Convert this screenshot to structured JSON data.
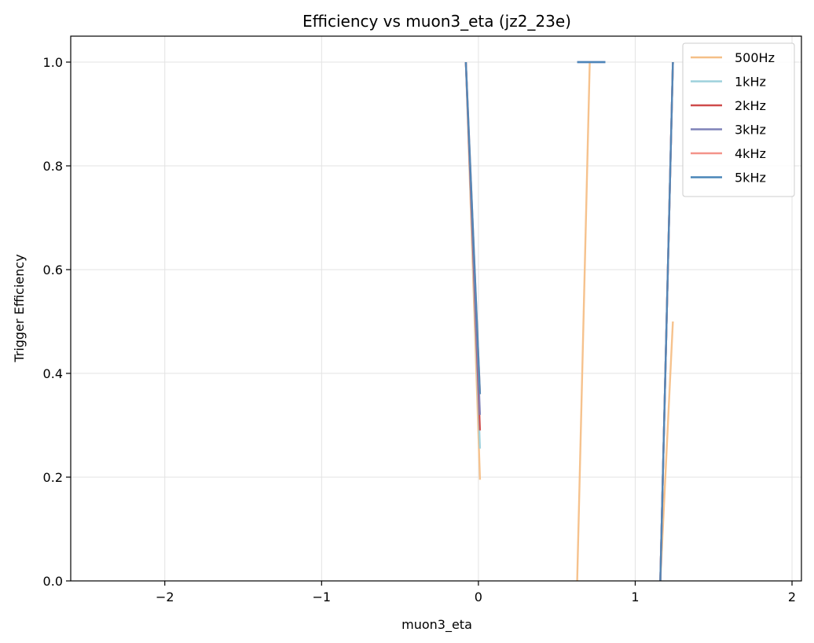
{
  "chart_data": {
    "type": "line",
    "title": "Efficiency vs muon3_eta (jz2_23e)",
    "xlabel": "muon3_eta",
    "ylabel": "Trigger Efficiency",
    "xlim": [
      -2.6,
      2.06
    ],
    "ylim": [
      0,
      1.05
    ],
    "xticks": [
      -2,
      -1,
      0,
      1,
      2
    ],
    "xtick_labels": [
      "−2",
      "−1",
      "0",
      "1",
      "2"
    ],
    "yticks": [
      0.0,
      0.2,
      0.4,
      0.6,
      0.8,
      1.0
    ],
    "ytick_labels": [
      "0.0",
      "0.2",
      "0.4",
      "0.6",
      "0.8",
      "1.0"
    ],
    "grid": true,
    "legend_position": "top-right",
    "series": [
      {
        "name": "500Hz",
        "color": "#f5bf87",
        "segments": [
          [
            [
              -0.08,
              1.0
            ],
            [
              0.01,
              0.195
            ]
          ],
          [
            [
              0.63,
              0.0
            ],
            [
              0.71,
              1.0
            ]
          ],
          [
            [
              1.16,
              0.0
            ],
            [
              1.24,
              0.5
            ]
          ]
        ]
      },
      {
        "name": "1kHz",
        "color": "#9dd1dc",
        "segments": [
          [
            [
              -0.08,
              1.0
            ],
            [
              0.01,
              0.255
            ]
          ],
          [
            [
              1.16,
              0.0
            ],
            [
              1.24,
              1.0
            ]
          ]
        ]
      },
      {
        "name": "2kHz",
        "color": "#cf4b4b",
        "segments": [
          [
            [
              -0.08,
              1.0
            ],
            [
              0.01,
              0.29
            ]
          ],
          [
            [
              1.16,
              0.0
            ],
            [
              1.24,
              1.0
            ]
          ]
        ]
      },
      {
        "name": "3kHz",
        "color": "#7f82b8",
        "segments": [
          [
            [
              -0.08,
              1.0
            ],
            [
              0.01,
              0.32
            ]
          ],
          [
            [
              0.63,
              1.0
            ],
            [
              0.81,
              1.0
            ]
          ],
          [
            [
              1.16,
              0.0
            ],
            [
              1.24,
              1.0
            ]
          ]
        ]
      },
      {
        "name": "4kHz",
        "color": "#f4938a",
        "segments": [
          [
            [
              -0.08,
              1.0
            ],
            [
              0.01,
              0.36
            ]
          ],
          [
            [
              1.16,
              0.0
            ],
            [
              1.24,
              1.0
            ]
          ]
        ]
      },
      {
        "name": "5kHz",
        "color": "#4a86b8",
        "segments": [
          [
            [
              -0.08,
              1.0
            ],
            [
              0.01,
              0.36
            ]
          ],
          [
            [
              0.63,
              1.0
            ],
            [
              0.81,
              1.0
            ]
          ],
          [
            [
              1.16,
              0.0
            ],
            [
              1.24,
              1.0
            ]
          ]
        ]
      }
    ]
  }
}
